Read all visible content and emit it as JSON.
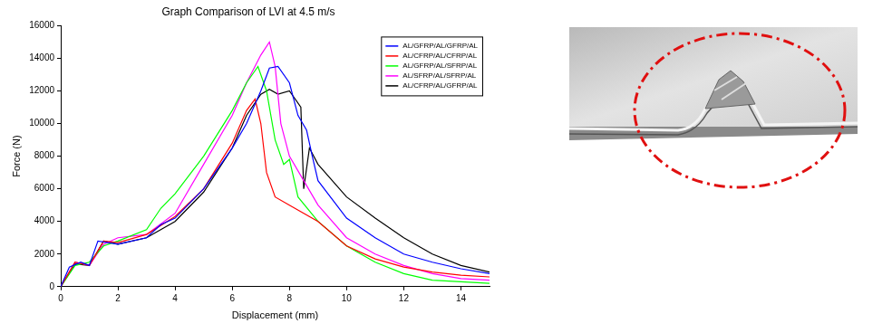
{
  "chart_data": {
    "type": "line",
    "title": "Graph Comparison of LVI at 4.5 m/s",
    "x_label": "Displacement (mm)",
    "y_label": "Force (N)",
    "xlim": [
      0,
      15
    ],
    "xticks": [
      0,
      2,
      4,
      6,
      8,
      10,
      12,
      14
    ],
    "ylim": [
      0,
      16000
    ],
    "yticks": [
      0,
      2000,
      4000,
      6000,
      8000,
      10000,
      12000,
      14000,
      16000
    ],
    "grid": false,
    "legend": "upper right",
    "series": [
      {
        "name": "AL/GFRP/AL/GFRP/AL",
        "color": "#0000ff",
        "x": [
          0,
          0.3,
          0.7,
          1,
          1.3,
          2,
          3,
          3.5,
          4,
          5,
          6,
          6.5,
          7,
          7.3,
          7.6,
          8,
          8.3,
          8.6,
          8.8,
          9,
          10,
          11,
          12,
          13,
          14,
          15
        ],
        "values": [
          0,
          1200,
          1500,
          1300,
          2800,
          2600,
          3000,
          3800,
          4200,
          6000,
          8500,
          10000,
          12000,
          13400,
          13500,
          12500,
          10500,
          9600,
          8000,
          6500,
          4200,
          3000,
          2000,
          1500,
          1100,
          800
        ]
      },
      {
        "name": "AL/CFRP/AL/CFRP/AL",
        "color": "#ff0000",
        "x": [
          0,
          0.5,
          1,
          1.5,
          2,
          3,
          4,
          5,
          6,
          6.5,
          6.8,
          7,
          7.2,
          7.5,
          8,
          9,
          10,
          11,
          12,
          13,
          14,
          15
        ],
        "values": [
          0,
          1500,
          1300,
          2800,
          2700,
          3200,
          4300,
          6000,
          8800,
          10800,
          11500,
          10000,
          7000,
          5500,
          5000,
          4000,
          2500,
          1700,
          1200,
          900,
          700,
          600
        ]
      },
      {
        "name": "AL/GFRP/AL/SFRP/AL",
        "color": "#00ff00",
        "x": [
          0,
          0.5,
          1,
          1.5,
          2,
          3,
          3.5,
          4,
          5,
          6,
          6.5,
          6.9,
          7.2,
          7.5,
          7.8,
          8,
          8.3,
          9,
          10,
          11,
          12,
          13,
          14,
          15
        ],
        "values": [
          0,
          1300,
          1500,
          2500,
          2800,
          3500,
          4800,
          5700,
          8000,
          10800,
          12500,
          13500,
          12000,
          9000,
          7500,
          7800,
          5500,
          4000,
          2500,
          1500,
          800,
          400,
          300,
          200
        ]
      },
      {
        "name": "AL/SFRP/AL/SFRP/AL",
        "color": "#ff00ff",
        "x": [
          0,
          0.5,
          1,
          1.5,
          2,
          3,
          4,
          5,
          6,
          6.5,
          7,
          7.3,
          7.5,
          7.7,
          8,
          8.5,
          9,
          10,
          11,
          12,
          13,
          14,
          15
        ],
        "values": [
          0,
          1500,
          1300,
          2600,
          3000,
          3200,
          4500,
          7500,
          10500,
          12500,
          14200,
          15000,
          13500,
          10000,
          8000,
          6500,
          5000,
          3000,
          2000,
          1300,
          800,
          500,
          400
        ]
      },
      {
        "name": "AL/CFRP/AL/GFRP/AL",
        "color": "#000000",
        "x": [
          0,
          0.5,
          1,
          1.5,
          2,
          3,
          4,
          5,
          6,
          6.5,
          7,
          7.3,
          7.6,
          8,
          8.4,
          8.5,
          8.7,
          9,
          10,
          11,
          12,
          13,
          14,
          15
        ],
        "values": [
          0,
          1400,
          1300,
          2800,
          2600,
          3000,
          4000,
          5800,
          8500,
          10500,
          11800,
          12100,
          11800,
          12000,
          11000,
          6000,
          8500,
          7500,
          5500,
          4200,
          3000,
          2000,
          1300,
          900
        ]
      }
    ]
  }
}
